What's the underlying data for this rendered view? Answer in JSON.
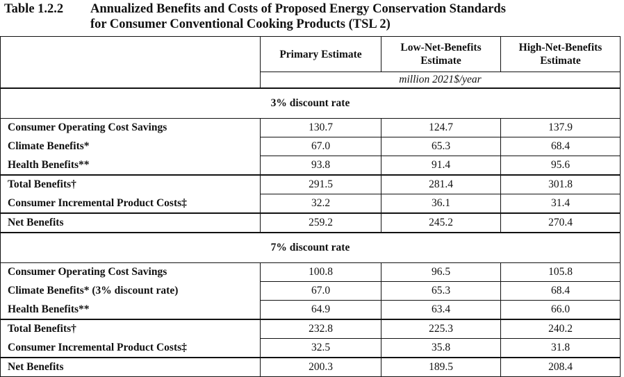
{
  "caption": {
    "number": "Table 1.2.2",
    "title_line1": "Annualized Benefits and Costs of Proposed Energy Conservation Standards",
    "title_line2": "for Consumer Conventional Cooking Products (TSL 2)"
  },
  "columns": {
    "primary": "Primary Estimate",
    "low": "Low-Net-Benefits Estimate",
    "high": "High-Net-Benefits Estimate"
  },
  "units": "million 2021$/year",
  "sections": [
    {
      "heading": "3% discount rate",
      "rows": [
        {
          "label": "Consumer Operating Cost Savings",
          "values": [
            "130.7",
            "124.7",
            "137.9"
          ]
        },
        {
          "label": "Climate Benefits*",
          "values": [
            "67.0",
            "65.3",
            "68.4"
          ]
        },
        {
          "label": "Health Benefits**",
          "values": [
            "93.8",
            "91.4",
            "95.6"
          ]
        },
        {
          "label": "Total Benefits†",
          "values": [
            "291.5",
            "281.4",
            "301.8"
          ]
        },
        {
          "label": "Consumer Incremental Product Costs‡",
          "values": [
            "32.2",
            "36.1",
            "31.4"
          ]
        },
        {
          "label": "Net Benefits",
          "values": [
            "259.2",
            "245.2",
            "270.4"
          ]
        }
      ]
    },
    {
      "heading": "7% discount rate",
      "rows": [
        {
          "label": "Consumer Operating Cost Savings",
          "values": [
            "100.8",
            "96.5",
            "105.8"
          ]
        },
        {
          "label": "Climate Benefits* (3% discount rate)",
          "values": [
            "67.0",
            "65.3",
            "68.4"
          ]
        },
        {
          "label": "Health Benefits**",
          "values": [
            "64.9",
            "63.4",
            "66.0"
          ]
        },
        {
          "label": "Total Benefits†",
          "values": [
            "232.8",
            "225.3",
            "240.2"
          ]
        },
        {
          "label": "Consumer Incremental Product Costs‡",
          "values": [
            "32.5",
            "35.8",
            "31.8"
          ]
        },
        {
          "label": "Net Benefits",
          "values": [
            "200.3",
            "189.5",
            "208.4"
          ]
        }
      ]
    }
  ]
}
